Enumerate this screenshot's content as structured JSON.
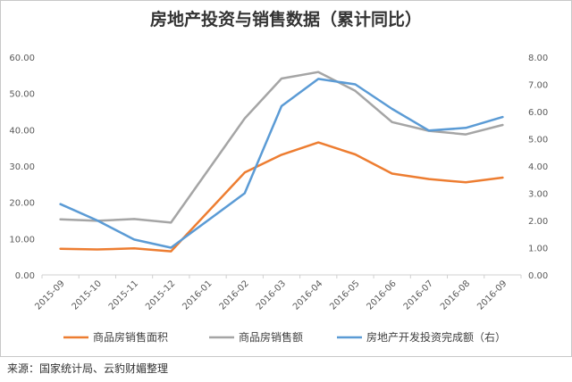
{
  "chart_data": {
    "type": "line",
    "title": "房地产投资与销售数据（累计同比）",
    "categories": [
      "2015-09",
      "2015-10",
      "2015-11",
      "2015-12",
      "2016-01",
      "2016-02",
      "2016-03",
      "2016-04",
      "2016-05",
      "2016-06",
      "2016-07",
      "2016-08",
      "2016-09"
    ],
    "y_left": {
      "ylim": [
        0,
        60
      ],
      "ticks": [
        "0.00",
        "10.00",
        "20.00",
        "30.00",
        "40.00",
        "50.00",
        "60.00"
      ]
    },
    "y_right": {
      "ylim": [
        0,
        8
      ],
      "ticks": [
        "0.00",
        "1.00",
        "2.00",
        "3.00",
        "4.00",
        "5.00",
        "6.00",
        "7.00",
        "8.00"
      ]
    },
    "series": [
      {
        "name": "商品房销售面积",
        "axis": "left",
        "color": "#ED7D31",
        "values": [
          7.2,
          7.0,
          7.3,
          6.5,
          null,
          28.2,
          33.1,
          36.5,
          33.2,
          27.9,
          26.4,
          25.5,
          26.8
        ]
      },
      {
        "name": "商品房销售额",
        "axis": "left",
        "color": "#A5A5A5",
        "values": [
          15.3,
          14.9,
          15.4,
          14.4,
          null,
          43.1,
          54.1,
          55.9,
          50.7,
          42.1,
          39.7,
          38.7,
          41.3
        ]
      },
      {
        "name": "房地产开发投资完成额（右）",
        "axis": "right",
        "color": "#5B9BD5",
        "values": [
          2.6,
          2.0,
          1.3,
          1.0,
          null,
          3.0,
          6.2,
          7.2,
          7.0,
          6.1,
          5.3,
          5.4,
          5.8
        ]
      }
    ],
    "grid": false,
    "legend": "bottom"
  },
  "source_note": "来源：国家统计局、云豹财媚整理"
}
